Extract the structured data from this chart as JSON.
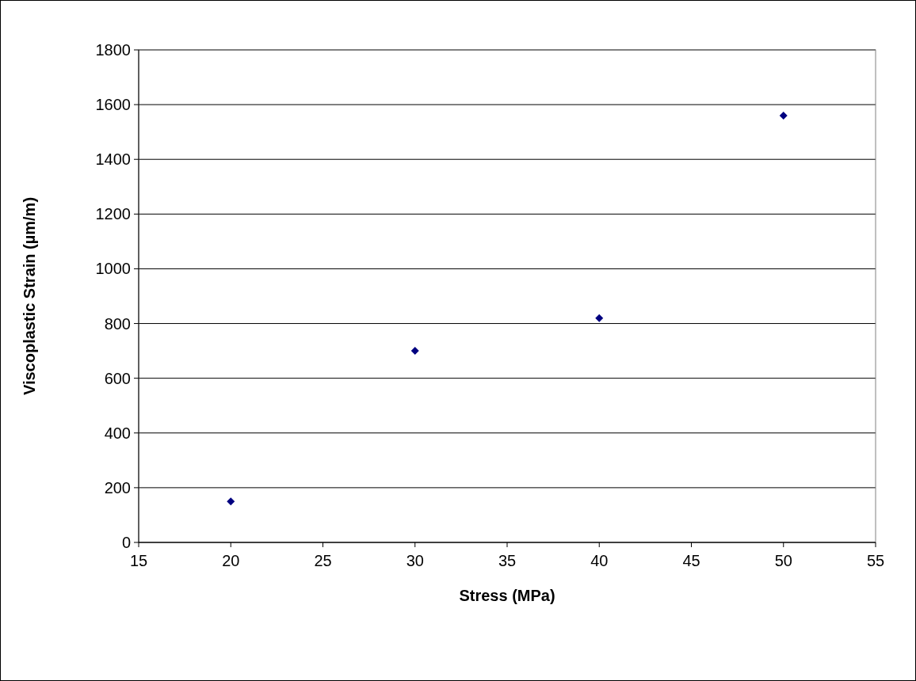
{
  "chart_data": {
    "type": "scatter",
    "xlabel": "Stress (MPa)",
    "ylabel": "Viscoplastic Strain (µm/m)",
    "x": [
      20,
      30,
      40,
      50
    ],
    "series": [
      {
        "color": "#000080",
        "values": [
          150,
          700,
          820,
          1560
        ]
      }
    ],
    "xlim": [
      15,
      55
    ],
    "xticks": [
      15,
      20,
      25,
      30,
      35,
      40,
      45,
      50,
      55
    ],
    "ylim": [
      0,
      1800
    ],
    "yticks": [
      0,
      200,
      400,
      600,
      800,
      1000,
      1200,
      1400,
      1600,
      1800
    ],
    "grid": "y",
    "marker": "diamond"
  }
}
